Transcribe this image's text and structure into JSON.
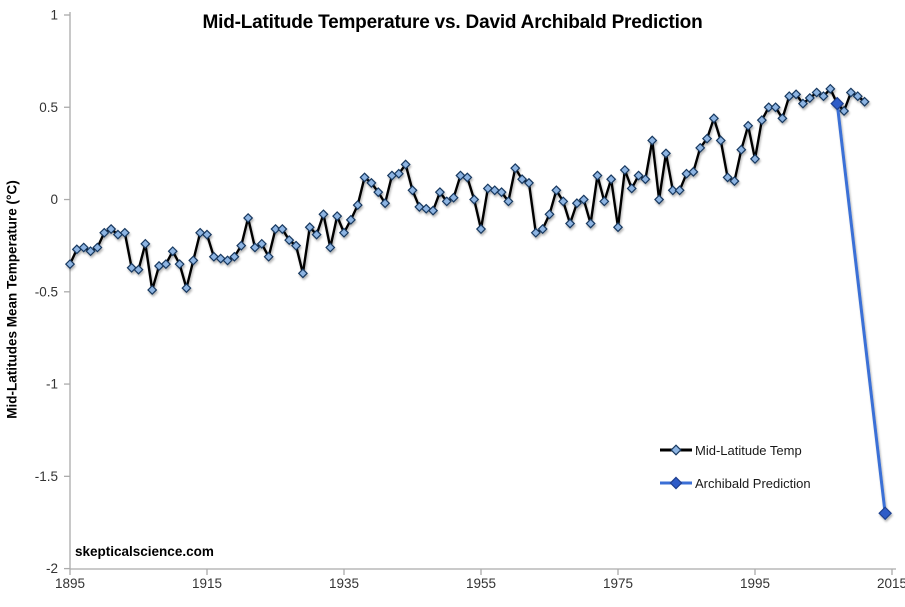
{
  "watermark": "skepticalscience.com",
  "colors": {
    "background": "#ffffff",
    "axis": "#ababab",
    "tick_label": "#333333",
    "temp_line": "#000000",
    "temp_marker_fill": "#8db4e2",
    "temp_marker_edge": "#17375e",
    "prediction_line": "#3b6fd6",
    "prediction_marker_fill": "#2d5bc8",
    "prediction_marker_edge": "#1f3f8f"
  },
  "chart_data": {
    "type": "line",
    "title": "Mid-Latitude Temperature vs. David Archibald Prediction",
    "xlabel": "",
    "ylabel": "Mid-Latitudes Mean Temperature (°C)",
    "xlim": [
      1895,
      2015
    ],
    "ylim": [
      -2,
      1
    ],
    "grid": false,
    "legend_position": "right-lower",
    "x_ticks": [
      1895,
      1915,
      1935,
      1955,
      1975,
      1995,
      2015
    ],
    "y_tick_labels": [
      "1",
      "0.5",
      "0",
      "-0.5",
      "-1",
      "-1.5",
      "-2"
    ],
    "series": [
      {
        "name": "Mid-Latitude Temp",
        "type": "yearly",
        "x_start": 1895,
        "x_step": 1,
        "values": [
          -0.35,
          -0.27,
          -0.26,
          -0.28,
          -0.26,
          -0.18,
          -0.16,
          -0.19,
          -0.18,
          -0.37,
          -0.38,
          -0.24,
          -0.49,
          -0.36,
          -0.35,
          -0.28,
          -0.35,
          -0.48,
          -0.33,
          -0.18,
          -0.19,
          -0.31,
          -0.32,
          -0.33,
          -0.31,
          -0.25,
          -0.1,
          -0.26,
          -0.24,
          -0.31,
          -0.16,
          -0.16,
          -0.22,
          -0.25,
          -0.4,
          -0.15,
          -0.19,
          -0.08,
          -0.26,
          -0.09,
          -0.18,
          -0.11,
          -0.03,
          0.12,
          0.09,
          0.04,
          -0.02,
          0.13,
          0.14,
          0.19,
          0.05,
          -0.04,
          -0.05,
          -0.06,
          0.04,
          -0.01,
          0.01,
          0.13,
          0.12,
          0.0,
          -0.16,
          0.06,
          0.05,
          0.04,
          -0.01,
          0.17,
          0.11,
          0.09,
          -0.18,
          -0.16,
          -0.08,
          0.05,
          -0.01,
          -0.13,
          -0.02,
          0.0,
          -0.13,
          0.13,
          -0.01,
          0.11,
          -0.15,
          0.16,
          0.06,
          0.13,
          0.11,
          0.32,
          0.0,
          0.25,
          0.05,
          0.05,
          0.14,
          0.15,
          0.28,
          0.33,
          0.44,
          0.32,
          0.12,
          0.1,
          0.27,
          0.4,
          0.22,
          0.43,
          0.5,
          0.5,
          0.44,
          0.56,
          0.57,
          0.52,
          0.55,
          0.58,
          0.56,
          0.6,
          0.52,
          0.48,
          0.58,
          0.56,
          0.53
        ]
      },
      {
        "name": "Archibald Prediction",
        "type": "segment",
        "points": [
          {
            "x": 2007,
            "y": 0.52
          },
          {
            "x": 2014,
            "y": -1.7
          }
        ]
      }
    ]
  }
}
